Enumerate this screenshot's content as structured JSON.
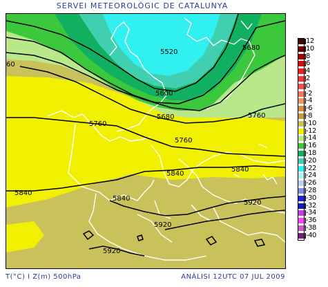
{
  "header": {
    "title": "SERVEI METEOROLÒGIC DE CATALUNYA"
  },
  "footer": {
    "left": "T(°C) I Z(m) 500hPa",
    "right": "ANÀLISI 12UTC 07 JUL 2009"
  },
  "legend": {
    "items": [
      {
        "label": "12",
        "color": "#3a0a00"
      },
      {
        "label": "10",
        "color": "#6e0000"
      },
      {
        "label": "8",
        "color": "#a00000"
      },
      {
        "label": "6",
        "color": "#d01010"
      },
      {
        "label": "4",
        "color": "#ee2020"
      },
      {
        "label": "2",
        "color": "#f23838"
      },
      {
        "label": "0",
        "color": "#f55050"
      },
      {
        "label": "-2",
        "color": "#f27a5a"
      },
      {
        "label": "-4",
        "color": "#e69a60"
      },
      {
        "label": "-6",
        "color": "#d88a40"
      },
      {
        "label": "-8",
        "color": "#c49a40"
      },
      {
        "label": "-10",
        "color": "#c9c25a"
      },
      {
        "label": "-12",
        "color": "#f0f000"
      },
      {
        "label": "-14",
        "color": "#b8e88a"
      },
      {
        "label": "-16",
        "color": "#3cc83c"
      },
      {
        "label": "-18",
        "color": "#10b060"
      },
      {
        "label": "-20",
        "color": "#40d0b0"
      },
      {
        "label": "-22",
        "color": "#30f0f0"
      },
      {
        "label": "-24",
        "color": "#a8f4f8"
      },
      {
        "label": "-26",
        "color": "#bcd0f0"
      },
      {
        "label": "-28",
        "color": "#8090e0"
      },
      {
        "label": "-30",
        "color": "#2020e0"
      },
      {
        "label": "-32",
        "color": "#1020b0"
      },
      {
        "label": "-34",
        "color": "#c040e0"
      },
      {
        "label": "-36",
        "color": "#ff40ff"
      },
      {
        "label": "-38",
        "color": "#c060c0"
      },
      {
        "label": "-40",
        "color": "#70207a"
      }
    ]
  },
  "map": {
    "colors": {
      "c_m10": "#c9c25a",
      "c_m12": "#f0f000",
      "c_m14": "#b8e88a",
      "c_m16": "#3cc83c",
      "c_m18": "#10b060",
      "c_m20": "#40d0b0",
      "c_m22": "#30f0f0",
      "coast": "#ffffff",
      "contour": "#000000"
    },
    "contour_labels": [
      {
        "text": "5520"
      },
      {
        "text": "5600"
      },
      {
        "text": "5680"
      },
      {
        "text": "5680"
      },
      {
        "text": "5760"
      },
      {
        "text": "5760"
      },
      {
        "text": "5760"
      },
      {
        "text": "5840"
      },
      {
        "text": "5840"
      },
      {
        "text": "5840"
      },
      {
        "text": "5840"
      },
      {
        "text": "5920"
      },
      {
        "text": "5920"
      },
      {
        "text": "5920"
      },
      {
        "text": "60"
      }
    ]
  }
}
